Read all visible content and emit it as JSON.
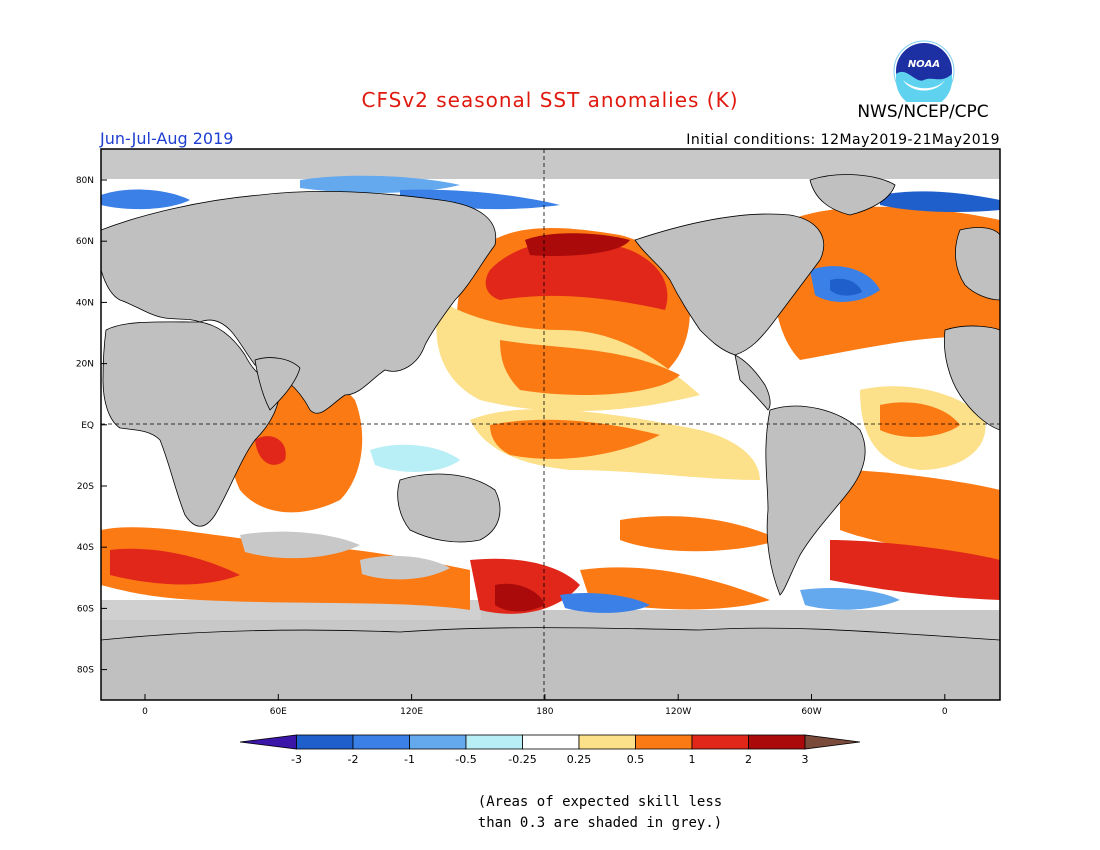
{
  "title": "CFSv2 seasonal SST anomalies (K)",
  "season": "Jun-Jul-Aug 2019",
  "initial_conditions": "Initial conditions: 12May2019-21May2019",
  "agency": "NWS/NCEP/CPC",
  "logo_text": "NOAA",
  "lat_labels": [
    "80N",
    "60N",
    "40N",
    "20N",
    "EQ",
    "20S",
    "40S",
    "60S",
    "80S"
  ],
  "lon_labels": [
    "0",
    "60E",
    "120E",
    "180",
    "120W",
    "60W",
    "0"
  ],
  "colorbar": {
    "labels": [
      "-3",
      "-2",
      "-1",
      "-0.5",
      "-0.25",
      "0.25",
      "0.5",
      "1",
      "2",
      "3"
    ],
    "colors": [
      "#3b16a8",
      "#1f5fcc",
      "#3a80e6",
      "#64a8ee",
      "#b8eef6",
      "#ffffff",
      "#fde08a",
      "#fb7a14",
      "#e0271a",
      "#aa0a0a",
      "#7a4a3a"
    ]
  },
  "note": [
    "(Areas of expected skill less",
    "than 0.3 are shaded in grey.)"
  ],
  "colors": {
    "title": "#e0190f",
    "season": "#1f3fd0",
    "land": "#c0c0c0",
    "skill_grey": "#c8c8c8"
  }
}
